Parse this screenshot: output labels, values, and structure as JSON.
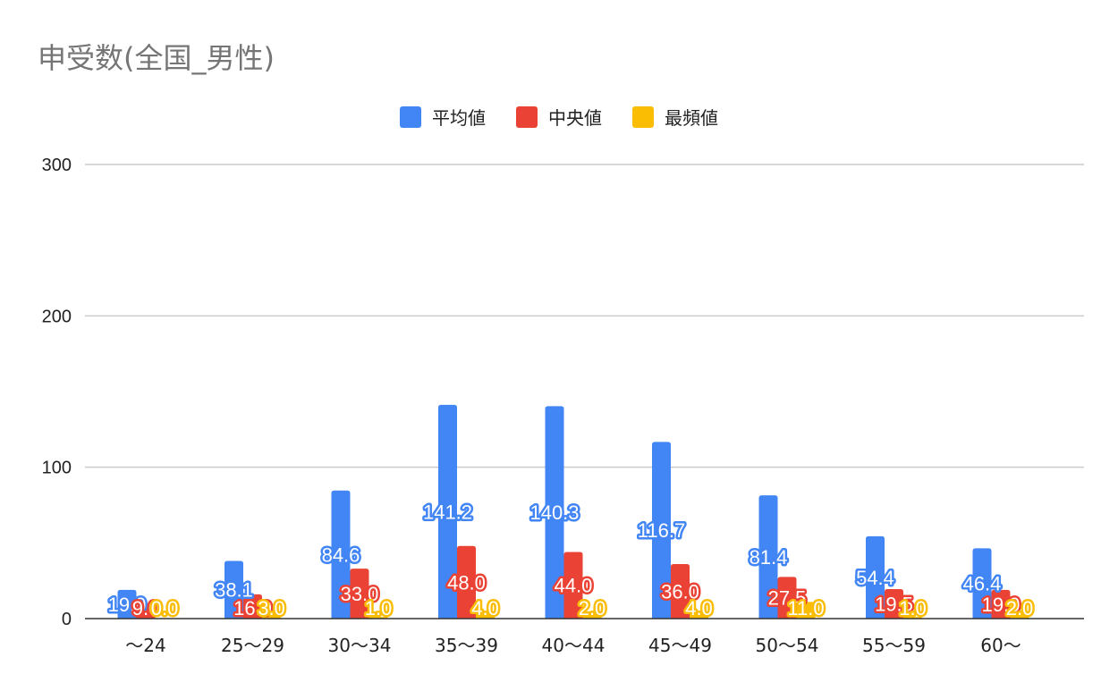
{
  "chart_data": {
    "type": "bar",
    "title": "申受数(全国_男性)",
    "xlabel": "",
    "ylabel": "",
    "ylim": [
      0,
      300
    ],
    "yticks": [
      0,
      100,
      200,
      300
    ],
    "grid": true,
    "legend_position": "top-center",
    "categories": [
      "～24",
      "25～29",
      "30～34",
      "35～39",
      "40～44",
      "45～49",
      "50～54",
      "55～59",
      "60～"
    ],
    "series": [
      {
        "name": "平均値",
        "color": "#4285F4",
        "values": [
          19.0,
          38.1,
          84.6,
          141.2,
          140.3,
          116.7,
          81.4,
          54.4,
          46.4
        ],
        "labels": [
          "19.0",
          "38.1",
          "84.6",
          "141.2",
          "140.3",
          "116.7",
          "81.4",
          "54.4",
          "46.4"
        ]
      },
      {
        "name": "中央値",
        "color": "#EA4335",
        "values": [
          9.0,
          16.0,
          33.0,
          48.0,
          44.0,
          36.0,
          27.5,
          19.5,
          19.0
        ],
        "labels": [
          "9.0",
          "16.0",
          "33.0",
          "48.0",
          "44.0",
          "36.0",
          "27.5",
          "19.5",
          "19.0"
        ]
      },
      {
        "name": "最頻値",
        "color": "#FBBC04",
        "values": [
          0.0,
          3.0,
          1.0,
          4.0,
          2.0,
          4.0,
          11.0,
          1.0,
          2.0
        ],
        "labels": [
          "0.0",
          "3.0",
          "1.0",
          "4.0",
          "2.0",
          "4.0",
          "11.0",
          "1.0",
          "2.0"
        ]
      }
    ]
  }
}
